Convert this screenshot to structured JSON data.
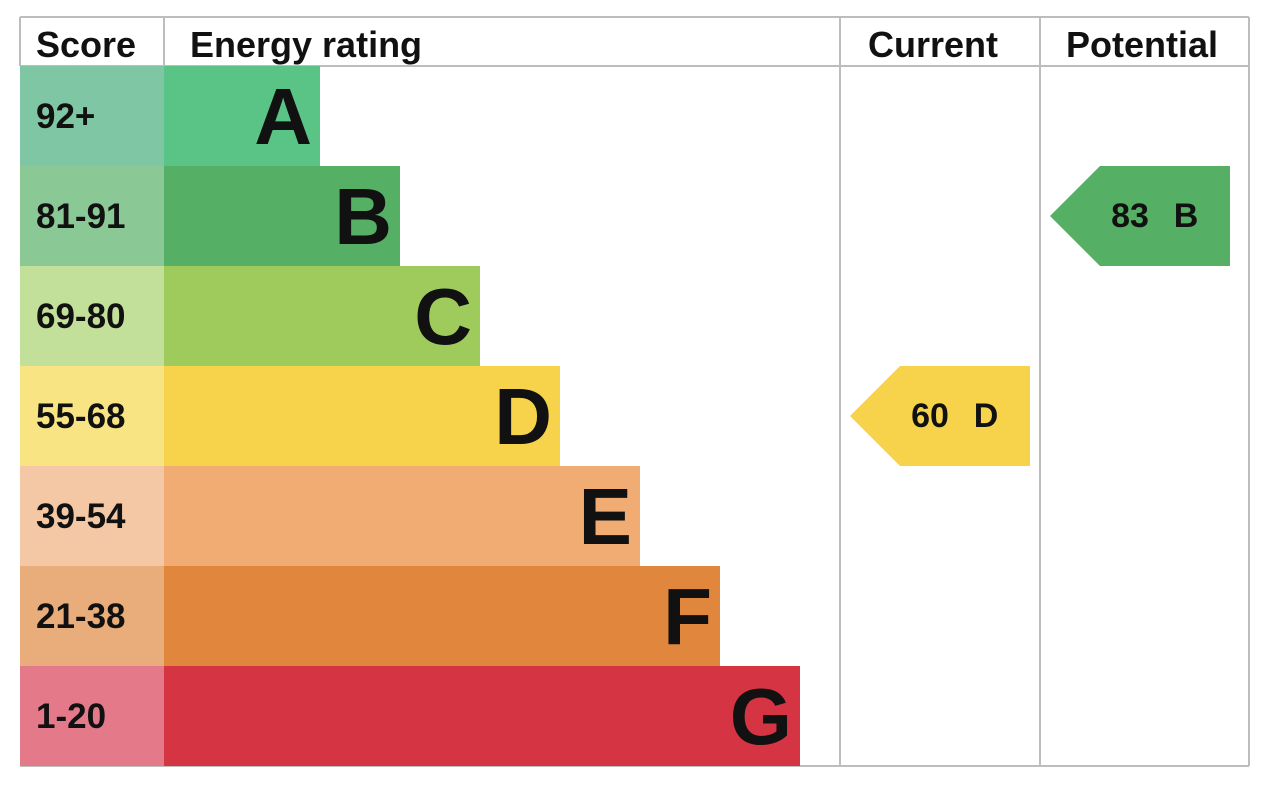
{
  "chart_data": {
    "type": "table",
    "columns": [
      "Score",
      "Energy rating",
      "Current",
      "Potential"
    ],
    "bands": [
      {
        "score": "92+",
        "letter": "A",
        "color": "#5ac486",
        "score_bg": "#7fc7a4"
      },
      {
        "score": "81-91",
        "letter": "B",
        "color": "#55af64",
        "score_bg": "#8ac995"
      },
      {
        "score": "69-80",
        "letter": "C",
        "color": "#9fcb5c",
        "score_bg": "#c2e09a"
      },
      {
        "score": "55-68",
        "letter": "D",
        "color": "#f6d34a",
        "score_bg": "#f9e483"
      },
      {
        "score": "39-54",
        "letter": "E",
        "color": "#f0ac73",
        "score_bg": "#f4c8a5"
      },
      {
        "score": "21-38",
        "letter": "F",
        "color": "#e0863d",
        "score_bg": "#e9ac7b"
      },
      {
        "score": "1-20",
        "letter": "G",
        "color": "#d53443",
        "score_bg": "#e47989"
      }
    ],
    "current": {
      "value": 60,
      "band": "D",
      "color": "#f6d34a"
    },
    "potential": {
      "value": 83,
      "band": "B",
      "color": "#55af64"
    }
  }
}
